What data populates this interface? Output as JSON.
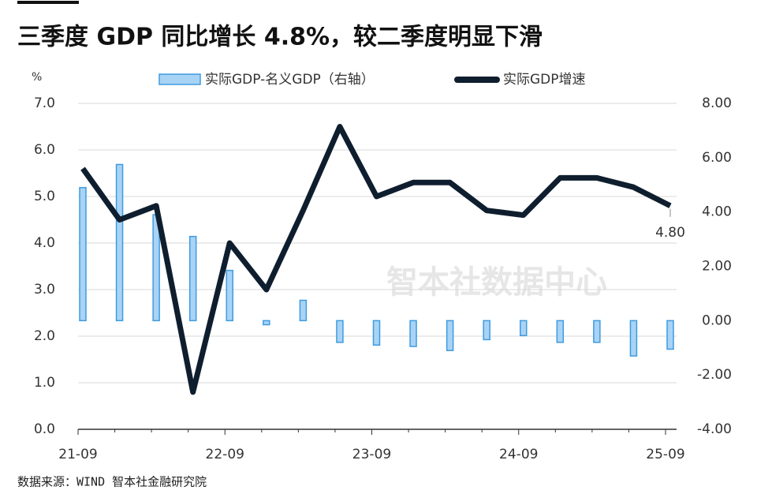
{
  "chart_data": {
    "type": "bar-line",
    "title": "三季度 GDP 同比增长 4.8%，较二季度明显下滑",
    "y_label": "%",
    "watermark": "智本社数据中心",
    "source": "数据来源：WIND 智本社金融研究院",
    "categories": [
      "21-09",
      null,
      null,
      null,
      "22-09",
      null,
      null,
      null,
      "23-09",
      null,
      null,
      null,
      "24-09",
      null,
      null,
      null,
      "25-09"
    ],
    "series": [
      {
        "name": "实际GDP-名义GDP（右轴）",
        "type": "bar",
        "axis": "y2",
        "color": "#a9d3f5",
        "stroke": "#3f9be0",
        "values": [
          4.9,
          5.75,
          3.9,
          3.1,
          1.85,
          -0.15,
          0.75,
          -0.8,
          -0.9,
          -0.95,
          -1.1,
          -0.7,
          -0.55,
          -0.8,
          -0.8,
          -1.3,
          -1.05
        ]
      },
      {
        "name": "实际GDP增速",
        "type": "line",
        "color": "#0f1e2e",
        "values": [
          5.6,
          4.5,
          4.8,
          0.8,
          4.0,
          3.0,
          4.7,
          6.5,
          5.0,
          5.3,
          5.3,
          4.7,
          4.6,
          5.4,
          5.4,
          5.2,
          4.8
        ],
        "value_labels": [
          null,
          null,
          null,
          null,
          null,
          null,
          null,
          null,
          null,
          null,
          null,
          null,
          null,
          null,
          null,
          null,
          "4.80"
        ]
      }
    ],
    "ylim": [
      0,
      7
    ],
    "yticks": [
      {
        "value": 0,
        "label": "0.0"
      },
      {
        "value": 1,
        "label": "1.0"
      },
      {
        "value": 2,
        "label": "2.0"
      },
      {
        "value": 3,
        "label": "3.0"
      },
      {
        "value": 4,
        "label": "4.0"
      },
      {
        "value": 5,
        "label": "5.0"
      },
      {
        "value": 6,
        "label": "6.0"
      },
      {
        "value": 7,
        "label": "7.0"
      }
    ],
    "y2lim": [
      -4,
      8
    ],
    "y2ticks": [
      {
        "value": -4,
        "label": "-4.00"
      },
      {
        "value": -2,
        "label": "-2.00"
      },
      {
        "value": 0,
        "label": "0.00"
      },
      {
        "value": 2,
        "label": "2.00"
      },
      {
        "value": 4,
        "label": "4.00"
      },
      {
        "value": 6,
        "label": "6.00"
      },
      {
        "value": 8,
        "label": "8.00"
      }
    ],
    "grid": true
  }
}
